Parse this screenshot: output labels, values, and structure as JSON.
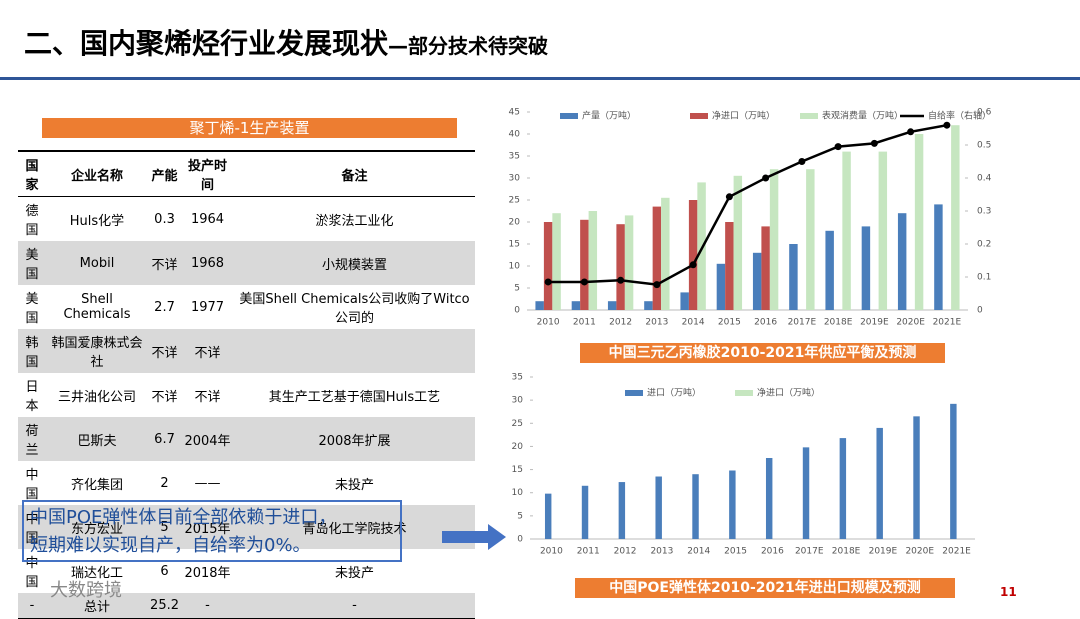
{
  "title": "二、国内聚烯烃行业发展现状",
  "subtitle": "—部分技术待突破",
  "table": {
    "title": "聚丁烯-1生产装置",
    "header": [
      "国家",
      "企业名称",
      "产能",
      "投产时间",
      "备注"
    ],
    "rows": [
      [
        "德国",
        "Huls化学",
        "0.3",
        "1964",
        "淤浆法工业化"
      ],
      [
        "美国",
        "Mobil",
        "不详",
        "1968",
        "小规模装置"
      ],
      [
        "美国",
        "Shell Chemicals",
        "2.7",
        "1977",
        "美国Shell Chemicals公司收购了Witco公司的"
      ],
      [
        "韩国",
        "韩国爱康株式会社",
        "不详",
        "不详",
        ""
      ],
      [
        "日本",
        "三井油化公司",
        "不详",
        "不详",
        "其生产工艺基于德国Huls工艺"
      ],
      [
        "荷兰",
        "巴斯夫",
        "6.7",
        "2004年",
        "2008年扩展"
      ],
      [
        "中国",
        "齐化集团",
        "2",
        "——",
        "未投产"
      ],
      [
        "中国",
        "东方宏业",
        "5",
        "2015年",
        "青岛化工学院技术"
      ],
      [
        "中国",
        "瑞达化工",
        "6",
        "2018年",
        "未投产"
      ],
      [
        "-",
        "总计",
        "25.2",
        "-",
        "-"
      ]
    ]
  },
  "note": [
    "中国POE弹性体目前全部依赖于进口，",
    "短期难以实现自产，自给率为0%。"
  ],
  "footer": "大数跨境",
  "page_number": "11",
  "chart_data": [
    {
      "type": "combo",
      "caption": "中国三元乙丙橡胶2010-2021年供应平衡及预测",
      "categories": [
        "2010",
        "2011",
        "2012",
        "2013",
        "2014",
        "2015",
        "2016",
        "2017E",
        "2018E",
        "2019E",
        "2020E",
        "2021E"
      ],
      "series": [
        {
          "name": "产量（万吨）",
          "color": "#4a7ebb",
          "values": [
            2,
            2,
            2,
            2,
            4,
            10.5,
            13,
            15,
            18,
            19,
            22,
            24
          ]
        },
        {
          "name": "净进口（万吨）",
          "color": "#c0504d",
          "values": [
            20,
            20.5,
            19.5,
            23.5,
            25,
            20,
            19,
            null,
            null,
            null,
            null,
            null
          ]
        },
        {
          "name": "表观消费量（万吨）",
          "color": "#c6e6c0",
          "values": [
            22,
            22.5,
            21.5,
            25.5,
            29,
            30.5,
            32,
            32,
            36,
            36,
            40,
            42
          ]
        },
        {
          "name": "自给率（右轴）",
          "color": "#000000",
          "axis": "y2",
          "values": [
            0.085,
            0.085,
            0.09,
            0.077,
            0.137,
            0.343,
            0.4,
            0.45,
            0.495,
            0.505,
            0.54,
            0.56
          ]
        }
      ],
      "ylim": [
        0,
        45
      ],
      "yticks": [
        0,
        5,
        10,
        15,
        20,
        25,
        30,
        35,
        40,
        45
      ],
      "y2lim": [
        0,
        0.6
      ],
      "y2ticks": [
        0,
        0.1,
        0.2,
        0.3,
        0.4,
        0.5,
        0.6
      ]
    },
    {
      "type": "bar",
      "caption": "中国POE弹性体2010-2021年进出口规模及预测",
      "categories": [
        "2010",
        "2011",
        "2012",
        "2013",
        "2014",
        "2015",
        "2016",
        "2017E",
        "2018E",
        "2019E",
        "2020E",
        "2021E"
      ],
      "series": [
        {
          "name": "进口（万吨）",
          "color": "#4a7ebb",
          "values": [
            9.8,
            11.5,
            12.3,
            13.5,
            14,
            14.8,
            17.5,
            19.8,
            21.8,
            24,
            26.5,
            29.2
          ]
        },
        {
          "name": "净进口（万吨）",
          "color": "#c6e6c0"
        }
      ],
      "ylim": [
        0,
        35
      ],
      "yticks": [
        0,
        5,
        10,
        15,
        20,
        25,
        30,
        35
      ]
    }
  ]
}
